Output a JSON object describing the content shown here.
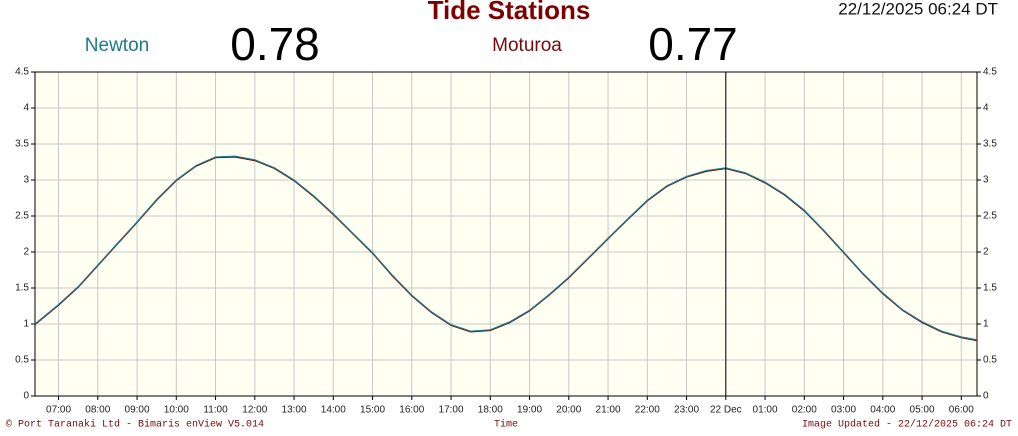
{
  "chart_data": {
    "type": "line",
    "title": "Tide Stations",
    "timestamp": "22/12/2025 06:24 DT",
    "xlabel": "Time",
    "footer_left": "© Port Taranaki Ltd - Bimaris enView V5.014",
    "footer_right": "Image Updated - 22/12/2025 06:24 DT",
    "x": [
      6.4,
      7,
      7.5,
      8,
      8.5,
      9,
      9.5,
      10,
      10.5,
      11,
      11.5,
      12,
      12.5,
      13,
      13.5,
      14,
      14.5,
      15,
      15.5,
      16,
      16.5,
      17,
      17.5,
      18,
      18.5,
      19,
      19.5,
      20,
      20.5,
      21,
      21.5,
      22,
      22.5,
      23,
      23.5,
      24,
      24.5,
      25,
      25.5,
      26,
      26.5,
      27,
      27.5,
      28,
      28.5,
      29,
      29.5,
      30,
      30.4
    ],
    "series": [
      {
        "name": "Newton",
        "color": "#1a7a8a",
        "latest": 0.78,
        "values": [
          1.0,
          1.27,
          1.52,
          1.82,
          2.12,
          2.42,
          2.73,
          3.0,
          3.2,
          3.32,
          3.33,
          3.28,
          3.17,
          3.0,
          2.78,
          2.53,
          2.26,
          1.99,
          1.68,
          1.4,
          1.17,
          0.99,
          0.9,
          0.92,
          1.03,
          1.19,
          1.41,
          1.65,
          1.92,
          2.19,
          2.46,
          2.72,
          2.92,
          3.05,
          3.13,
          3.17,
          3.1,
          2.97,
          2.8,
          2.58,
          2.3,
          2.0,
          1.7,
          1.43,
          1.2,
          1.03,
          0.9,
          0.82,
          0.78
        ]
      },
      {
        "name": "Moturoa",
        "color": "#7a0a0a",
        "latest": 0.77,
        "values": [
          0.99,
          1.26,
          1.51,
          1.81,
          2.11,
          2.41,
          2.72,
          2.99,
          3.19,
          3.31,
          3.32,
          3.27,
          3.16,
          2.99,
          2.77,
          2.52,
          2.25,
          1.98,
          1.67,
          1.39,
          1.16,
          0.98,
          0.89,
          0.91,
          1.02,
          1.18,
          1.4,
          1.64,
          1.91,
          2.18,
          2.45,
          2.71,
          2.91,
          3.04,
          3.12,
          3.16,
          3.09,
          2.96,
          2.79,
          2.57,
          2.29,
          1.99,
          1.69,
          1.42,
          1.19,
          1.02,
          0.89,
          0.81,
          0.77
        ]
      }
    ],
    "xlim": [
      6.4,
      30.4
    ],
    "ylim": [
      0,
      4.5
    ],
    "yticks": [
      0,
      0.5,
      1,
      1.5,
      2,
      2.5,
      3,
      3.5,
      4,
      4.5
    ],
    "xticks": [
      {
        "value": 7,
        "label": "07:00"
      },
      {
        "value": 8,
        "label": "08:00"
      },
      {
        "value": 9,
        "label": "09:00"
      },
      {
        "value": 10,
        "label": "10:00"
      },
      {
        "value": 11,
        "label": "11:00"
      },
      {
        "value": 12,
        "label": "12:00"
      },
      {
        "value": 13,
        "label": "13:00"
      },
      {
        "value": 14,
        "label": "14:00"
      },
      {
        "value": 15,
        "label": "15:00"
      },
      {
        "value": 16,
        "label": "16:00"
      },
      {
        "value": 17,
        "label": "17:00"
      },
      {
        "value": 18,
        "label": "18:00"
      },
      {
        "value": 19,
        "label": "19:00"
      },
      {
        "value": 20,
        "label": "20:00"
      },
      {
        "value": 21,
        "label": "21:00"
      },
      {
        "value": 22,
        "label": "22:00"
      },
      {
        "value": 23,
        "label": "23:00"
      },
      {
        "value": 24,
        "label": "22 Dec"
      },
      {
        "value": 25,
        "label": "01:00"
      },
      {
        "value": 26,
        "label": "02:00"
      },
      {
        "value": 27,
        "label": "03:00"
      },
      {
        "value": 28,
        "label": "04:00"
      },
      {
        "value": 29,
        "label": "05:00"
      },
      {
        "value": 30,
        "label": "06:00"
      }
    ],
    "cursor_tick": 17,
    "grid": true
  }
}
